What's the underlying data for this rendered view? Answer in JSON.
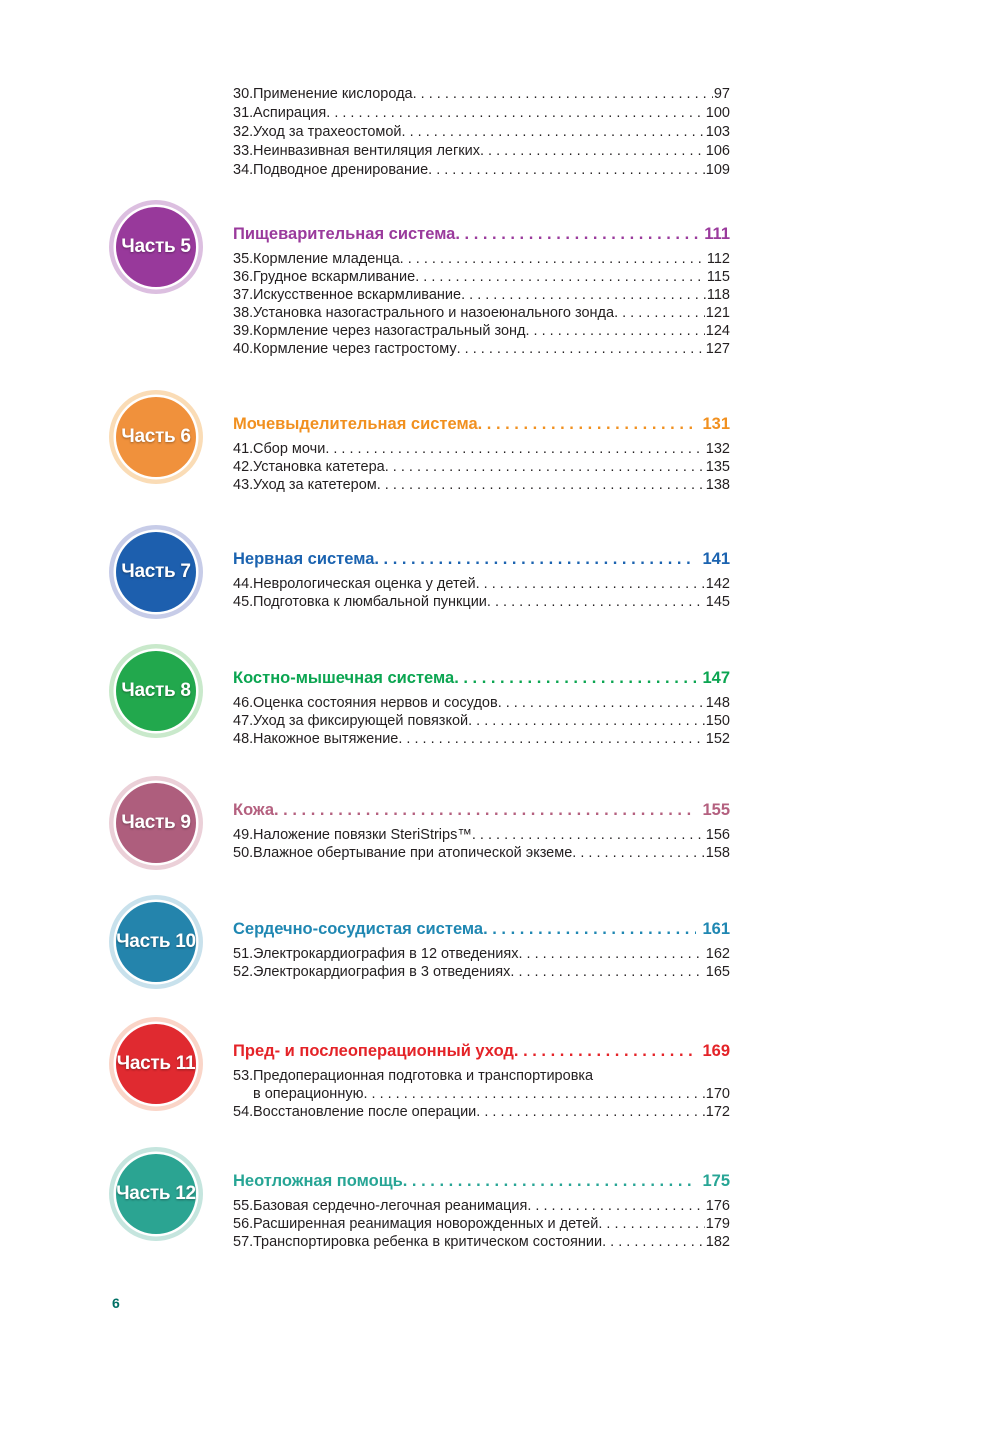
{
  "footer": {
    "page_number": "6"
  },
  "top_items": [
    {
      "num": "30.",
      "lines": [
        "Применение кислорода"
      ],
      "page": "97"
    },
    {
      "num": "31.",
      "lines": [
        "Аспирация"
      ],
      "page": "100"
    },
    {
      "num": "32.",
      "lines": [
        "Уход за трахеостомой"
      ],
      "page": "103"
    },
    {
      "num": "33.",
      "lines": [
        "Неинвазивная вентиляция легких"
      ],
      "page": "106"
    },
    {
      "num": "34.",
      "lines": [
        "Подводное дренирование"
      ],
      "page": "109"
    }
  ],
  "sections": [
    {
      "part": "Часть 5",
      "title": "Пищеварительная система",
      "page": "111",
      "colors": {
        "circle": "#98399B",
        "ring": "#DCBFE0",
        "heading": "#9A3A9C"
      },
      "items": [
        {
          "num": "35.",
          "lines": [
            "Кормление младенца"
          ],
          "page": "112"
        },
        {
          "num": "36.",
          "lines": [
            "Грудное вскармливание"
          ],
          "page": "115"
        },
        {
          "num": "37.",
          "lines": [
            "Искусственное вскармливание"
          ],
          "page": "118"
        },
        {
          "num": "38.",
          "lines": [
            "Установка назогастрального и назоеюнального зонда"
          ],
          "page": "121"
        },
        {
          "num": "39.",
          "lines": [
            "Кормление через назогастральный зонд"
          ],
          "page": "124"
        },
        {
          "num": "40.",
          "lines": [
            "Кормление через гастростому"
          ],
          "page": "127"
        }
      ]
    },
    {
      "part": "Часть 6",
      "title": "Мочевыделительная система",
      "page": "131",
      "colors": {
        "circle": "#F0913C",
        "ring": "#FADCB6",
        "heading": "#F1901F"
      },
      "items": [
        {
          "num": "41.",
          "lines": [
            "Сбор мочи"
          ],
          "page": "132"
        },
        {
          "num": "42.",
          "lines": [
            "Установка катетера"
          ],
          "page": "135"
        },
        {
          "num": "43.",
          "lines": [
            "Уход за катетером"
          ],
          "page": "138"
        }
      ]
    },
    {
      "part": "Часть 7",
      "title": "Нервная система",
      "page": "141",
      "colors": {
        "circle": "#1D5FAE",
        "ring": "#C7CCE8",
        "heading": "#1B63B0"
      },
      "items": [
        {
          "num": "44.",
          "lines": [
            "Неврологическая оценка у детей"
          ],
          "page": "142"
        },
        {
          "num": "45.",
          "lines": [
            "Подготовка к люмбальной пункции"
          ],
          "page": "145"
        }
      ]
    },
    {
      "part": "Часть 8",
      "title": "Костно-мышечная система",
      "page": "147",
      "colors": {
        "circle": "#22A84D",
        "ring": "#C9E9CB",
        "heading": "#0BA551"
      },
      "items": [
        {
          "num": "46.",
          "lines": [
            "Оценка состояния нервов и сосудов"
          ],
          "page": "148"
        },
        {
          "num": "47.",
          "lines": [
            "Уход за фиксирующей повязкой"
          ],
          "page": "150"
        },
        {
          "num": "48.",
          "lines": [
            "Накожное вытяжение"
          ],
          "page": "152"
        }
      ]
    },
    {
      "part": "Часть 9",
      "title": "Кожа",
      "page": "155",
      "colors": {
        "circle": "#AE5E7D",
        "ring": "#EBD0D8",
        "heading": "#B4607F"
      },
      "items": [
        {
          "num": "49.",
          "lines": [
            "Наложение повязки SteriStrips™"
          ],
          "page": "156"
        },
        {
          "num": "50.",
          "lines": [
            "Влажное обертывание при атопической экземе"
          ],
          "page": "158"
        }
      ]
    },
    {
      "part": "Часть 10",
      "title": "Сердечно-сосудистая система",
      "page": "161",
      "colors": {
        "circle": "#2484AC",
        "ring": "#C8E1EC",
        "heading": "#1F87B2"
      },
      "items": [
        {
          "num": "51.",
          "lines": [
            "Электрокардиография в 12 отведениях"
          ],
          "page": "162"
        },
        {
          "num": "52.",
          "lines": [
            "Электрокардиография в 3 отведениях"
          ],
          "page": "165"
        }
      ]
    },
    {
      "part": "Часть 11",
      "title": "Пред- и послеоперационный уход",
      "page": "169",
      "colors": {
        "circle": "#E02A30",
        "ring": "#FAD5C8",
        "heading": "#E42328"
      },
      "items": [
        {
          "num": "53.",
          "lines": [
            "Предоперационная подготовка и транспортировка",
            "в операционную"
          ],
          "page": "170"
        },
        {
          "num": "54.",
          "lines": [
            "Восстановление после операции"
          ],
          "page": "172"
        }
      ]
    },
    {
      "part": "Часть 12",
      "title": "Неотложная помощь",
      "page": "175",
      "colors": {
        "circle": "#2BA492",
        "ring": "#C5E5DE",
        "heading": "#27A595"
      },
      "items": [
        {
          "num": "55.",
          "lines": [
            "Базовая сердечно-легочная реанимация"
          ],
          "page": "176"
        },
        {
          "num": "56.",
          "lines": [
            "Расширенная реанимация новорожденных и детей"
          ],
          "page": "179"
        },
        {
          "num": "57.",
          "lines": [
            "Транспортировка ребенка в критическом состоянии"
          ],
          "page": "182"
        }
      ]
    }
  ]
}
